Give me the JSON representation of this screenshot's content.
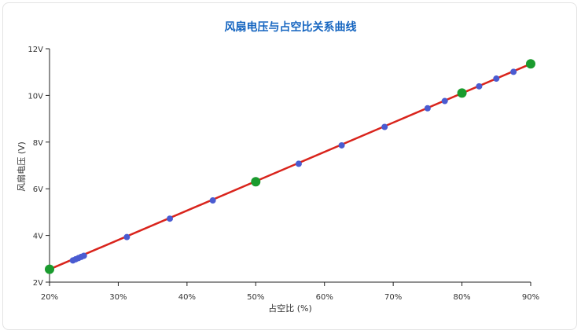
{
  "chart_data": {
    "type": "line",
    "title": "风扇电压与占空比关系曲线",
    "xlabel": "占空比 (%)",
    "ylabel": "风扇电压 (V)",
    "xlim": [
      20,
      90
    ],
    "ylim": [
      2,
      12
    ],
    "x_ticks": [
      "20%",
      "30%",
      "40%",
      "50%",
      "60%",
      "70%",
      "80%",
      "90%"
    ],
    "y_ticks": [
      "2V",
      "4V",
      "6V",
      "8V",
      "10V",
      "12V"
    ],
    "grid": false,
    "line": {
      "x": [
        20,
        90
      ],
      "y": [
        2.55,
        11.35
      ]
    },
    "series": [
      {
        "marker": "small-blue",
        "x": [
          23.4,
          23.8,
          24.2,
          24.6,
          25.0,
          31.25,
          37.5,
          43.75,
          56.25,
          62.5,
          68.75,
          75.0,
          77.5,
          82.5,
          85.0,
          87.5
        ],
        "y": [
          2.93,
          2.98,
          3.03,
          3.08,
          3.13,
          3.93,
          4.72,
          5.5,
          7.07,
          7.86,
          8.65,
          9.45,
          9.76,
          10.39,
          10.72,
          11.01
        ]
      },
      {
        "marker": "large-green",
        "x": [
          20,
          50,
          80,
          90
        ],
        "y": [
          2.55,
          6.3,
          10.1,
          11.35
        ]
      }
    ],
    "colors": {
      "line": "#d9241c",
      "small_points": "#4a5bd1",
      "large_points": "#1a9b2e",
      "title": "#1565c0"
    }
  }
}
